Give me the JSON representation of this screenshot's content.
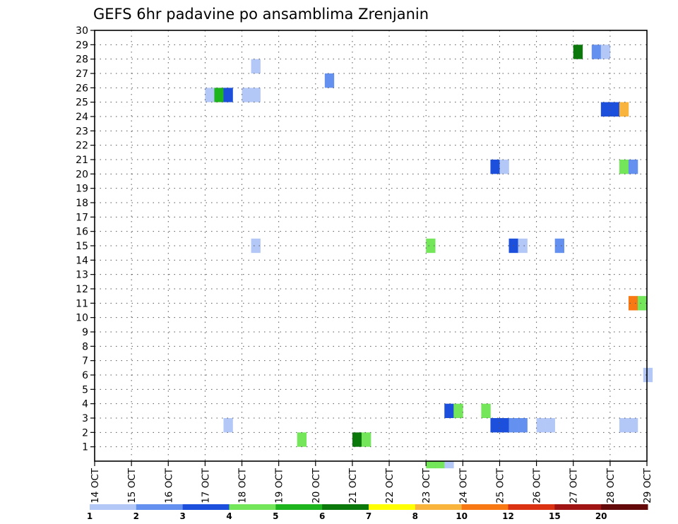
{
  "chart_data": {
    "type": "heatmap",
    "title": "GEFS 6hr padavine po ansamblima Zrenjanin",
    "y_ticks": [
      1,
      2,
      3,
      4,
      5,
      6,
      7,
      8,
      9,
      10,
      11,
      12,
      13,
      14,
      15,
      16,
      17,
      18,
      19,
      20,
      21,
      22,
      23,
      24,
      25,
      26,
      27,
      28,
      29,
      30
    ],
    "y_range": [
      0,
      30
    ],
    "x_ticks": [
      "14 OCT",
      "15 OCT",
      "16 OCT",
      "17 OCT",
      "18 OCT",
      "19 OCT",
      "20 OCT",
      "21 OCT",
      "22 OCT",
      "23 OCT",
      "24 OCT",
      "25 OCT",
      "26 OCT",
      "27 OCT",
      "28 OCT",
      "29 OCT"
    ],
    "x_range_days": [
      0,
      15
    ],
    "grid": true,
    "legend_placement": "bottom",
    "legend": {
      "labels": [
        "1",
        "2",
        "3",
        "4",
        "5",
        "6",
        "7",
        "8",
        "10",
        "12",
        "15",
        "20"
      ],
      "colors": [
        "#b4c8f8",
        "#6490f0",
        "#1c50dc",
        "#73e65a",
        "#1eb41e",
        "#0a780a",
        "#ffff00",
        "#f8b43c",
        "#f87814",
        "#dc3214",
        "#a01414",
        "#640a0a"
      ]
    },
    "cells": [
      {
        "day": 3.0,
        "m1": 25,
        "m2": 26,
        "c": 0
      },
      {
        "day": 3.25,
        "m1": 25,
        "m2": 26,
        "c": 4
      },
      {
        "day": 3.5,
        "m1": 25,
        "m2": 26,
        "c": 2
      },
      {
        "day": 4.0,
        "m1": 25,
        "m2": 26,
        "c": 0
      },
      {
        "day": 4.25,
        "m1": 25,
        "m2": 26,
        "c": 0
      },
      {
        "day": 4.25,
        "m1": 27,
        "m2": 28,
        "c": 0
      },
      {
        "day": 4.25,
        "m1": 14.5,
        "m2": 15.5,
        "c": 0
      },
      {
        "day": 3.5,
        "m1": 2,
        "m2": 3,
        "c": 0
      },
      {
        "day": 5.5,
        "m1": 1,
        "m2": 2,
        "c": 3
      },
      {
        "day": 6.25,
        "m1": 26,
        "m2": 27,
        "c": 1
      },
      {
        "day": 7.0,
        "m1": 1,
        "m2": 2,
        "c": 5
      },
      {
        "day": 7.25,
        "m1": 1,
        "m2": 2,
        "c": 3
      },
      {
        "day": 9.0,
        "m1": -0.5,
        "m2": 0,
        "c": 3
      },
      {
        "day": 9.25,
        "m1": -0.5,
        "m2": 0,
        "c": 3
      },
      {
        "day": 9.5,
        "m1": -0.5,
        "m2": 0,
        "c": 0
      },
      {
        "day": 9.0,
        "m1": 14.5,
        "m2": 15.5,
        "c": 3
      },
      {
        "day": 9.5,
        "m1": 3,
        "m2": 4,
        "c": 2
      },
      {
        "day": 9.75,
        "m1": 3,
        "m2": 4,
        "c": 3
      },
      {
        "day": 10.5,
        "m1": 3,
        "m2": 4,
        "c": 3
      },
      {
        "day": 10.75,
        "m1": 2,
        "m2": 3,
        "c": 2
      },
      {
        "day": 11.0,
        "m1": 2,
        "m2": 3,
        "c": 2
      },
      {
        "day": 11.25,
        "m1": 2,
        "m2": 3,
        "c": 1
      },
      {
        "day": 11.5,
        "m1": 2,
        "m2": 3,
        "c": 1
      },
      {
        "day": 12.0,
        "m1": 2,
        "m2": 3,
        "c": 0
      },
      {
        "day": 12.25,
        "m1": 2,
        "m2": 3,
        "c": 0
      },
      {
        "day": 10.75,
        "m1": 20,
        "m2": 21,
        "c": 2
      },
      {
        "day": 11.0,
        "m1": 20,
        "m2": 21,
        "c": 0
      },
      {
        "day": 11.25,
        "m1": 14.5,
        "m2": 15.5,
        "c": 2
      },
      {
        "day": 11.5,
        "m1": 14.5,
        "m2": 15.5,
        "c": 0
      },
      {
        "day": 12.5,
        "m1": 14.5,
        "m2": 15.5,
        "c": 1
      },
      {
        "day": 13.0,
        "m1": 28,
        "m2": 29,
        "c": 5
      },
      {
        "day": 13.5,
        "m1": 28,
        "m2": 29,
        "c": 1
      },
      {
        "day": 13.75,
        "m1": 28,
        "m2": 29,
        "c": 0
      },
      {
        "day": 13.75,
        "m1": 24,
        "m2": 25,
        "c": 2
      },
      {
        "day": 14.0,
        "m1": 24,
        "m2": 25,
        "c": 2
      },
      {
        "day": 14.25,
        "m1": 24,
        "m2": 25,
        "c": 7
      },
      {
        "day": 14.25,
        "m1": 20,
        "m2": 21,
        "c": 3
      },
      {
        "day": 14.5,
        "m1": 20,
        "m2": 21,
        "c": 1
      },
      {
        "day": 14.25,
        "m1": 2,
        "m2": 3,
        "c": 0
      },
      {
        "day": 14.5,
        "m1": 2,
        "m2": 3,
        "c": 0
      },
      {
        "day": 14.5,
        "m1": 10.5,
        "m2": 11.5,
        "c": 8
      },
      {
        "day": 14.75,
        "m1": 10.5,
        "m2": 11.5,
        "c": 3
      },
      {
        "day": 14.9,
        "m1": 5.5,
        "m2": 6.5,
        "c": 0
      }
    ]
  }
}
